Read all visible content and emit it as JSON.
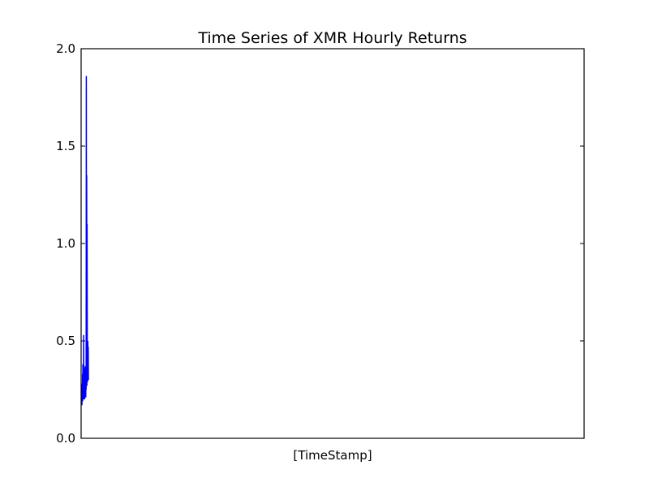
{
  "chart_data": {
    "type": "line",
    "title": "Time Series of XMR Hourly Returns",
    "xlabel": "[TimeStamp]",
    "ylabel": "",
    "ylim": [
      0.0,
      2.0
    ],
    "yticks": [
      0.0,
      0.5,
      1.0,
      1.5,
      2.0
    ],
    "ytick_labels": [
      "0.0",
      "0.5",
      "1.0",
      "1.5",
      "2.0"
    ],
    "x_tick_labels_visible": false,
    "grid": false,
    "legend": "none",
    "series": [
      {
        "color": "#0000ff",
        "values": [
          0.17,
          0.28,
          0.21,
          0.33,
          0.19,
          0.38,
          0.24,
          0.3,
          0.2,
          0.53,
          0.22,
          0.36,
          0.25,
          0.34,
          0.2,
          0.27,
          0.23,
          0.37,
          0.31,
          0.26,
          0.21,
          0.3,
          0.25,
          1.86,
          0.3,
          1.35,
          0.27,
          1.1,
          0.42,
          0.35,
          0.29,
          0.5,
          0.33,
          0.47,
          0.3
        ]
      }
    ]
  }
}
